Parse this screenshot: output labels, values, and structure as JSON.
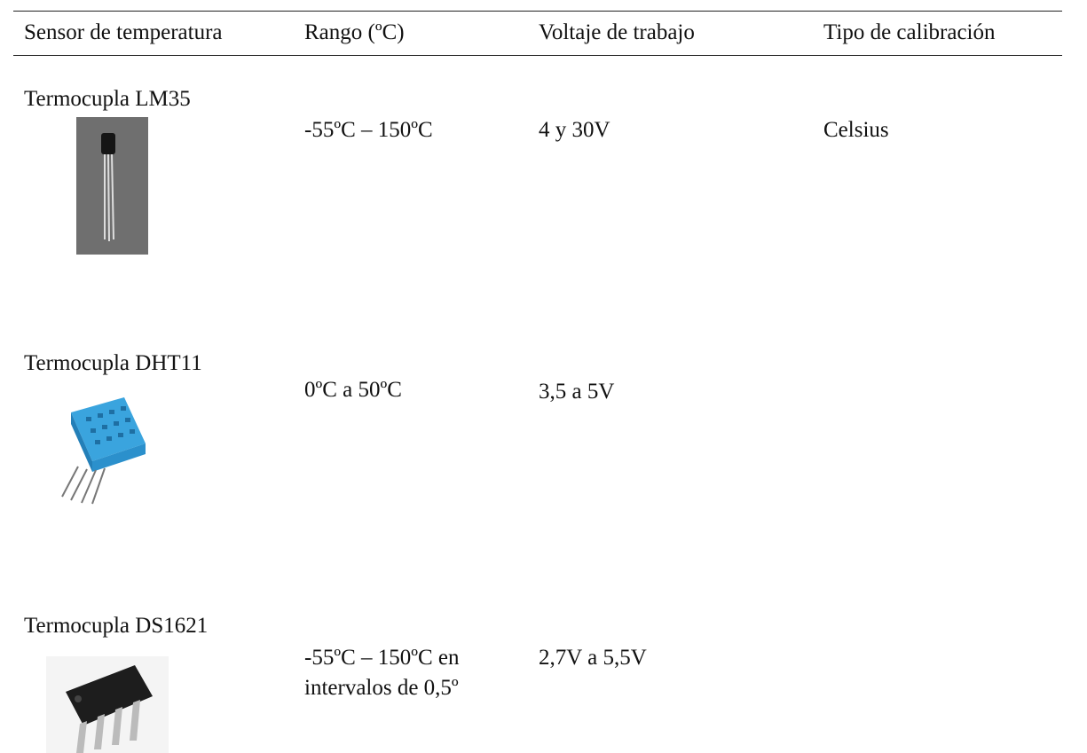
{
  "table": {
    "header": [
      "Sensor de temperatura",
      "Rango (ºC)",
      "Voltaje de trabajo",
      "Tipo de calibración"
    ],
    "rows": [
      {
        "sensor": "Termocupla LM35",
        "range": "-55ºC – 150ºC",
        "voltage": "4 y 30V",
        "calibration": "Celsius"
      },
      {
        "sensor": "Termocupla DHT11",
        "range": "0ºC a 50ºC",
        "voltage": "3,5 a 5V"
      },
      {
        "sensor": "Termocupla DS1621",
        "range": "-55ºC – 150ºC en intervalos de 0,5º",
        "voltage": "2,7V a 5,5V"
      }
    ]
  }
}
